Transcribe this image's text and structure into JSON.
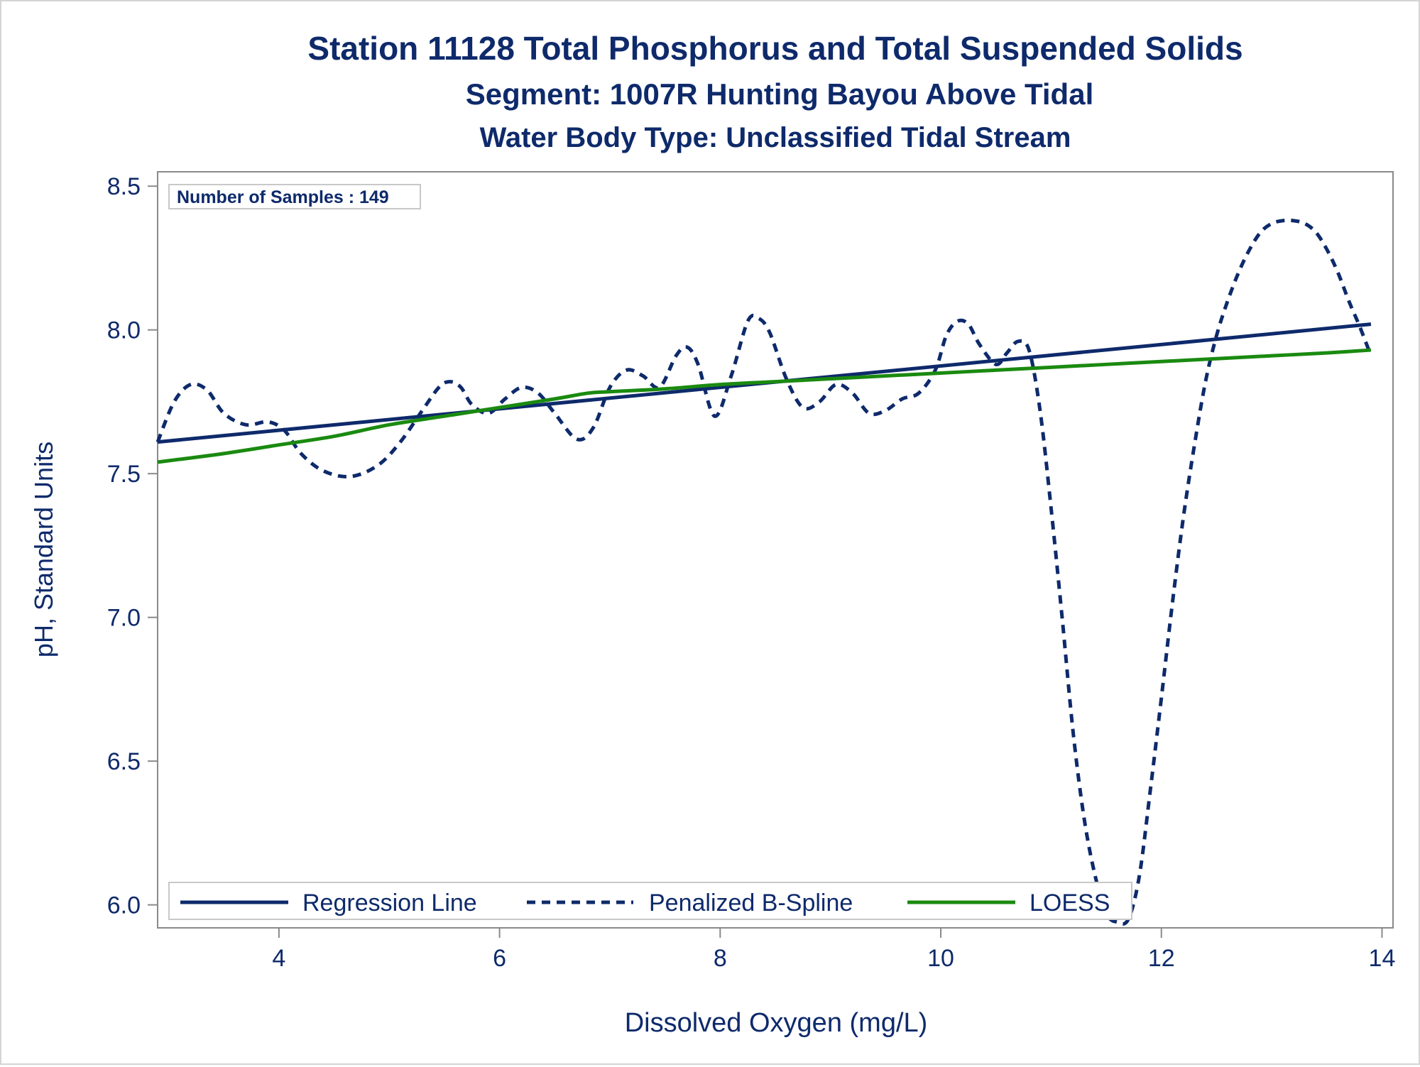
{
  "chart_data": {
    "type": "line",
    "title": "Station 11128  Total Phosphorus and Total Suspended Solids",
    "subtitle": "Segment: 1007R  Hunting Bayou Above Tidal",
    "subtitle2": "Water Body Type: Unclassified Tidal Stream",
    "xlabel": "Dissolved Oxygen (mg/L)",
    "ylabel": "pH, Standard Units",
    "xlim": [
      2.9,
      14.1
    ],
    "ylim": [
      5.92,
      8.55
    ],
    "xticks": [
      4,
      6,
      8,
      10,
      12,
      14
    ],
    "xtick_labels": [
      "4",
      "6",
      "8",
      "10",
      "12",
      "14"
    ],
    "yticks": [
      6.0,
      6.5,
      7.0,
      7.5,
      8.0,
      8.5
    ],
    "ytick_labels": [
      "6.0",
      "6.5",
      "7.0",
      "7.5",
      "8.0",
      "8.5"
    ],
    "grid": false,
    "annotation": "Number of Samples : 149",
    "legend_position": "bottom-left-inside",
    "series": [
      {
        "name": "Regression Line",
        "style": "solid",
        "color": "#0e2a6b",
        "x": [
          2.9,
          13.9
        ],
        "y": [
          7.61,
          8.02
        ]
      },
      {
        "name": "Penalized B-Spline",
        "style": "dashed",
        "color": "#0e2a6b",
        "x": [
          2.9,
          3.05,
          3.2,
          3.35,
          3.5,
          3.7,
          3.9,
          4.05,
          4.2,
          4.4,
          4.65,
          4.9,
          5.1,
          5.3,
          5.45,
          5.55,
          5.65,
          5.75,
          5.9,
          6.05,
          6.2,
          6.35,
          6.5,
          6.7,
          6.85,
          7.0,
          7.15,
          7.3,
          7.45,
          7.6,
          7.7,
          7.8,
          7.95,
          8.1,
          8.25,
          8.35,
          8.45,
          8.6,
          8.75,
          8.9,
          9.05,
          9.2,
          9.35,
          9.5,
          9.65,
          9.8,
          9.95,
          10.05,
          10.15,
          10.25,
          10.35,
          10.5,
          10.6,
          10.7,
          10.8,
          10.9,
          11.0,
          11.1,
          11.2,
          11.3,
          11.4,
          11.5,
          11.6,
          11.7,
          11.8,
          11.9,
          12.0,
          12.1,
          12.2,
          12.3,
          12.4,
          12.5,
          12.6,
          12.7,
          12.8,
          12.9,
          13.0,
          13.1,
          13.2,
          13.3,
          13.4,
          13.5,
          13.6,
          13.7,
          13.8,
          13.9
        ],
        "y": [
          7.61,
          7.75,
          7.81,
          7.79,
          7.71,
          7.67,
          7.68,
          7.65,
          7.57,
          7.51,
          7.49,
          7.53,
          7.61,
          7.72,
          7.8,
          7.82,
          7.8,
          7.74,
          7.71,
          7.76,
          7.8,
          7.78,
          7.71,
          7.62,
          7.66,
          7.8,
          7.86,
          7.84,
          7.8,
          7.91,
          7.94,
          7.88,
          7.7,
          7.84,
          8.03,
          8.04,
          7.99,
          7.83,
          7.73,
          7.75,
          7.81,
          7.78,
          7.71,
          7.72,
          7.76,
          7.78,
          7.86,
          7.98,
          8.03,
          8.02,
          7.95,
          7.88,
          7.92,
          7.96,
          7.93,
          7.72,
          7.38,
          7.0,
          6.6,
          6.3,
          6.1,
          5.97,
          5.94,
          5.95,
          6.1,
          6.4,
          6.72,
          7.05,
          7.35,
          7.6,
          7.82,
          7.98,
          8.1,
          8.2,
          8.28,
          8.34,
          8.37,
          8.38,
          8.38,
          8.37,
          8.34,
          8.28,
          8.2,
          8.1,
          8.01,
          7.91
        ]
      },
      {
        "name": "LOESS",
        "style": "solid",
        "color": "#1a8a10",
        "x": [
          2.9,
          3.5,
          4.0,
          4.5,
          5.0,
          5.5,
          6.0,
          6.5,
          6.8,
          7.0,
          7.5,
          8.0,
          8.5,
          9.0,
          9.5,
          10.0,
          10.5,
          11.0,
          11.5,
          12.0,
          12.5,
          13.0,
          13.5,
          13.9
        ],
        "y": [
          7.54,
          7.57,
          7.6,
          7.63,
          7.67,
          7.7,
          7.73,
          7.76,
          7.78,
          7.785,
          7.795,
          7.81,
          7.82,
          7.83,
          7.84,
          7.85,
          7.86,
          7.87,
          7.88,
          7.89,
          7.9,
          7.91,
          7.92,
          7.93
        ]
      }
    ]
  }
}
